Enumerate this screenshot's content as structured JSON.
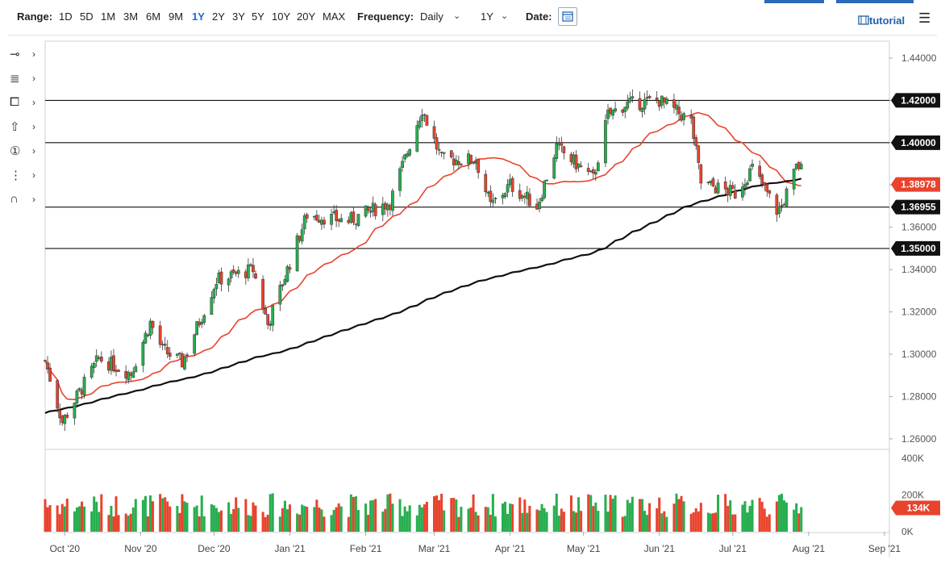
{
  "toolbar": {
    "range_label": "Range:",
    "ranges": [
      "1D",
      "5D",
      "1M",
      "3M",
      "6M",
      "9M",
      "1Y",
      "2Y",
      "3Y",
      "5Y",
      "10Y",
      "20Y",
      "MAX"
    ],
    "active_range": "1Y",
    "frequency_label": "Frequency:",
    "frequency_value": "Daily",
    "period_value": "1Y",
    "date_label": "Date:",
    "tutorial_label": "tutorial",
    "accent_color": "#1a6bd0"
  },
  "drawing_tools": [
    {
      "name": "line-tool-icon",
      "glyph": "⊸"
    },
    {
      "name": "fib-tool-icon",
      "glyph": "≣"
    },
    {
      "name": "rectangle-tool-icon",
      "glyph": "⧠"
    },
    {
      "name": "arrow-up-tool-icon",
      "glyph": "⇧"
    },
    {
      "name": "number-marker-icon",
      "glyph": "①"
    },
    {
      "name": "pitchfork-tool-icon",
      "glyph": "⋮"
    },
    {
      "name": "magnet-icon",
      "glyph": "∩"
    }
  ],
  "chart_data": {
    "type": "candlestick",
    "y_ticks": [
      "1.44000",
      "1.42000",
      "1.40000",
      "1.38000",
      "1.36000",
      "1.34000",
      "1.32000",
      "1.30000",
      "1.28000",
      "1.26000"
    ],
    "ylim": [
      1.255,
      1.448
    ],
    "x_ticks": [
      "Oct '20",
      "Nov '20",
      "Dec '20",
      "Jan '21",
      "Feb '21",
      "Mar '21",
      "Apr '21",
      "May '21",
      "Jun '21",
      "Jul '21",
      "Aug '21",
      "Sep '21"
    ],
    "horizontal_levels": [
      {
        "label": "1.42000",
        "value": 1.42
      },
      {
        "label": "1.40000",
        "value": 1.4
      },
      {
        "label": "1.36955",
        "value": 1.36955
      },
      {
        "label": "1.35000",
        "value": 1.35
      }
    ],
    "last_price": {
      "label": "1.38978",
      "value": 1.38978,
      "color": "#e8432c"
    },
    "up_color": "#27ae4f",
    "down_color": "#e8432c",
    "ma_fast_color": "#e8432c",
    "ma_slow_color": "#111111",
    "anchors": [
      {
        "date": "2020-09-23",
        "close": 1.297
      },
      {
        "date": "2020-09-30",
        "close": 1.268
      },
      {
        "date": "2020-10-15",
        "close": 1.298
      },
      {
        "date": "2020-10-28",
        "close": 1.291
      },
      {
        "date": "2020-11-05",
        "close": 1.315
      },
      {
        "date": "2020-11-10",
        "close": 1.302
      },
      {
        "date": "2020-11-18",
        "close": 1.296
      },
      {
        "date": "2020-12-02",
        "close": 1.335
      },
      {
        "date": "2020-12-17",
        "close": 1.34
      },
      {
        "date": "2020-12-23",
        "close": 1.314
      },
      {
        "date": "2021-01-08",
        "close": 1.366
      },
      {
        "date": "2021-01-25",
        "close": 1.363
      },
      {
        "date": "2021-02-11",
        "close": 1.372
      },
      {
        "date": "2021-02-24",
        "close": 1.416
      },
      {
        "date": "2021-03-04",
        "close": 1.392
      },
      {
        "date": "2021-03-18",
        "close": 1.392
      },
      {
        "date": "2021-03-24",
        "close": 1.37
      },
      {
        "date": "2021-04-01",
        "close": 1.38
      },
      {
        "date": "2021-04-12",
        "close": 1.37
      },
      {
        "date": "2021-04-20",
        "close": 1.398
      },
      {
        "date": "2021-05-05",
        "close": 1.383
      },
      {
        "date": "2021-05-11",
        "close": 1.413
      },
      {
        "date": "2021-05-18",
        "close": 1.418
      },
      {
        "date": "2021-06-01",
        "close": 1.42
      },
      {
        "date": "2021-06-14",
        "close": 1.41
      },
      {
        "date": "2021-06-18",
        "close": 1.381
      },
      {
        "date": "2021-07-02",
        "close": 1.376
      },
      {
        "date": "2021-07-09",
        "close": 1.388
      },
      {
        "date": "2021-07-19",
        "close": 1.368
      },
      {
        "date": "2021-07-21",
        "close": 1.37
      },
      {
        "date": "2021-07-27",
        "close": 1.388
      },
      {
        "date": "2021-07-29",
        "close": 1.3898
      }
    ],
    "volume_ticks": [
      "400K",
      "200K",
      "0K"
    ],
    "volume_max": 400000,
    "last_volume": {
      "label": "134K",
      "value": 134000
    }
  }
}
